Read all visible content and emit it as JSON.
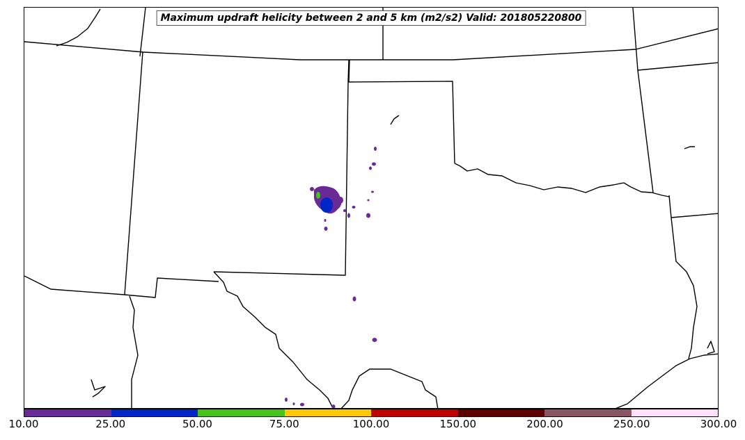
{
  "title": "Maximum updraft helicity between 2 and 5 km (m2/s2) Valid: 201805220800",
  "colorbar": {
    "ticks": [
      "10.00",
      "25.00",
      "50.00",
      "75.00",
      "100.00",
      "150.00",
      "200.00",
      "250.00",
      "300.00"
    ],
    "colors": [
      "#6a2a96",
      "#0026c8",
      "#44c41a",
      "#ffc800",
      "#bf0000",
      "#5c0000",
      "#8a5565",
      "#ffe0fa"
    ]
  },
  "features": {
    "boundary_color": "#000000"
  }
}
